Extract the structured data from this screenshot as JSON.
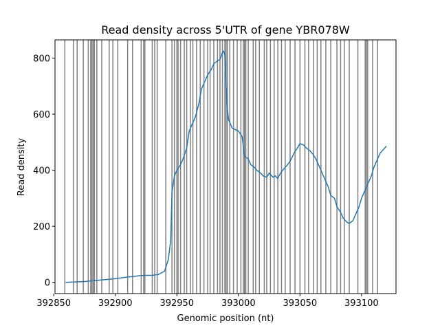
{
  "chart_data": {
    "type": "line",
    "title": "Read density across 5'UTR of gene YBR078W",
    "xlabel": "Genomic position (nt)",
    "ylabel": "Read density",
    "xlim": [
      392851,
      393128
    ],
    "ylim": [
      -40,
      865
    ],
    "xticks": [
      392850,
      392900,
      392950,
      393000,
      393050,
      393100
    ],
    "yticks": [
      0,
      200,
      400,
      600,
      800
    ],
    "grid": false,
    "series": [
      {
        "color": "#1f77b4",
        "x": [
          392860,
          392865,
          392870,
          392875,
          392880,
          392885,
          392890,
          392895,
          392900,
          392905,
          392910,
          392915,
          392920,
          392925,
          392930,
          392935,
          392940,
          392943,
          392945,
          392946,
          392947,
          392948,
          392950,
          392953,
          392955,
          392958,
          392960,
          392963,
          392965,
          392968,
          392970,
          392973,
          392975,
          392978,
          392980,
          392983,
          392985,
          392987,
          392988,
          392989,
          392990,
          392991,
          392992,
          392995,
          393000,
          393003,
          393005,
          393008,
          393010,
          393013,
          393015,
          393018,
          393020,
          393023,
          393025,
          393028,
          393030,
          393032,
          393033,
          393035,
          393038,
          393040,
          393043,
          393045,
          393048,
          393050,
          393053,
          393055,
          393058,
          393060,
          393063,
          393065,
          393068,
          393070,
          393073,
          393075,
          393078,
          393080,
          393083,
          393085,
          393088,
          393090,
          393093,
          393095,
          393098,
          393100,
          393102,
          393103,
          393105,
          393108,
          393110,
          393113,
          393115,
          393117,
          393119,
          393120
        ],
        "values": [
          0,
          1,
          2,
          3,
          5,
          7,
          9,
          11,
          13,
          16,
          19,
          21,
          24,
          25,
          25,
          28,
          40,
          80,
          150,
          320,
          350,
          380,
          400,
          420,
          440,
          480,
          540,
          570,
          590,
          640,
          690,
          720,
          740,
          760,
          780,
          790,
          795,
          820,
          825,
          810,
          700,
          620,
          580,
          550,
          540,
          520,
          450,
          440,
          420,
          410,
          400,
          390,
          380,
          375,
          390,
          375,
          380,
          370,
          380,
          395,
          410,
          420,
          440,
          460,
          480,
          495,
          490,
          480,
          470,
          460,
          440,
          420,
          390,
          370,
          340,
          310,
          300,
          270,
          250,
          230,
          215,
          210,
          220,
          240,
          270,
          300,
          320,
          330,
          350,
          380,
          410,
          440,
          460,
          470,
          480,
          485
        ]
      }
    ],
    "vlines": [
      392859,
      392866,
      392869,
      392874,
      392878,
      392880,
      392881,
      392882,
      392883,
      392885,
      392889,
      392895,
      392898,
      392902,
      392910,
      392914,
      392921,
      392923,
      392924,
      392930,
      392932,
      392934,
      392941,
      392946,
      392948,
      392950,
      392951,
      392953,
      392956,
      392958,
      392961,
      392963,
      392966,
      392969,
      392972,
      392975,
      392977,
      392980,
      392983,
      392985,
      392987,
      392989,
      392990,
      392991,
      392993,
      392996,
      392999,
      393002,
      393004,
      393005,
      393006,
      393008,
      393012,
      393014,
      393017,
      393021,
      393023,
      393026,
      393029,
      393032,
      393035,
      393038,
      393042,
      393046,
      393050,
      393054,
      393057,
      393061,
      393064,
      393067,
      393071,
      393075,
      393080,
      393083,
      393086,
      393090,
      393097,
      393103,
      393104,
      393105,
      393109,
      393113
    ]
  }
}
